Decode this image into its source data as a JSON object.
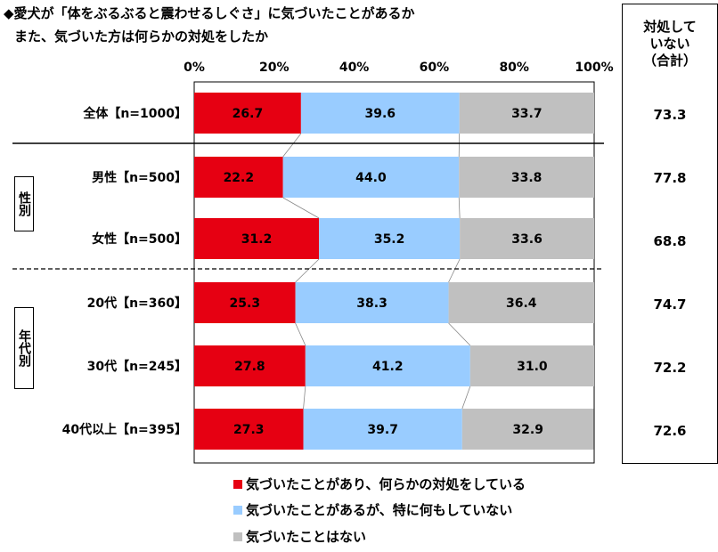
{
  "title_line1": "◆愛犬が「体をぶるぶると震わせるしぐさ」に気づいたことがあるか",
  "title_line2": "また、気づいた方は何らかの対処をしたか",
  "side_header": [
    "対処して",
    "いない",
    "（合計）"
  ],
  "groups": [
    {
      "label": "性別"
    },
    {
      "label": "年代別"
    }
  ],
  "legend": [
    {
      "label": "気づいたことがあり、何らかの対処をしている",
      "color": "#e60012"
    },
    {
      "label": "気づいたことがあるが、特に何もしていない",
      "color": "#99ccff"
    },
    {
      "label": "気づいたことはない",
      "color": "#c0c0c0"
    }
  ],
  "chart_data": {
    "type": "bar",
    "orientation": "horizontal",
    "stacked": "100%",
    "x_ticks": [
      "0%",
      "20%",
      "40%",
      "60%",
      "80%",
      "100%"
    ],
    "xlim": [
      0,
      100
    ],
    "categories": [
      "全体【n=1000】",
      "男性【n=500】",
      "女性【n=500】",
      "20代【n=360】",
      "30代【n=245】",
      "40代以上【n=395】"
    ],
    "series": [
      {
        "name": "気づいたことがあり、何らかの対処をしている",
        "color": "#e60012",
        "values": [
          26.7,
          22.2,
          31.2,
          25.3,
          27.8,
          27.3
        ]
      },
      {
        "name": "気づいたことがあるが、特に何もしていない",
        "color": "#99ccff",
        "values": [
          39.6,
          44.0,
          35.2,
          38.3,
          41.2,
          39.7
        ]
      },
      {
        "name": "気づいたことはない",
        "color": "#c0c0c0",
        "values": [
          33.7,
          33.8,
          33.6,
          36.4,
          31.0,
          32.9
        ]
      }
    ],
    "side_totals": [
      "73.3",
      "77.8",
      "68.8",
      "74.7",
      "72.2",
      "72.6"
    ]
  }
}
